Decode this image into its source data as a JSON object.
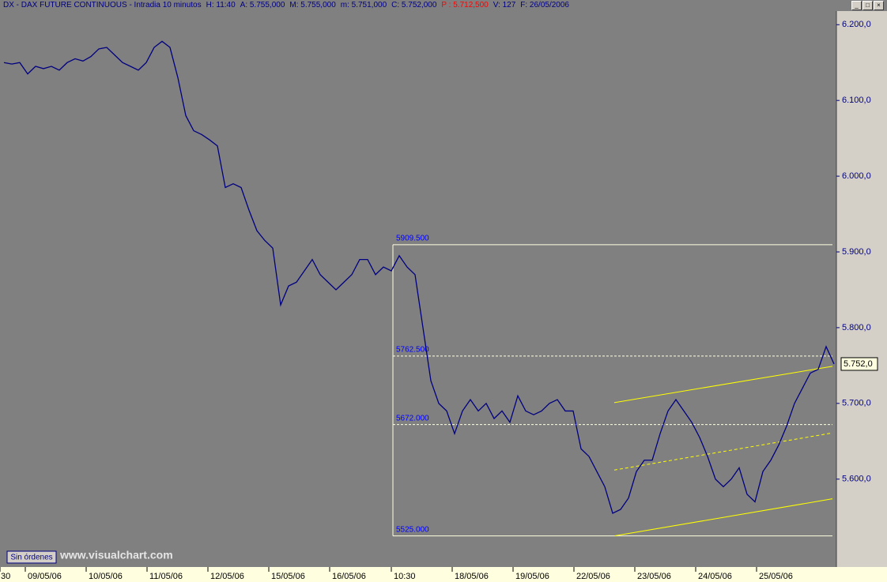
{
  "header": {
    "items": [
      {
        "text": "DX - DAX FUTURE CONTINUOUS - Intradia 10 minutos",
        "color": "#000080"
      },
      {
        "text": "H: 11:40",
        "color": "#000080"
      },
      {
        "text": "A: 5.755,000",
        "color": "#000080"
      },
      {
        "text": "M: 5.755,000",
        "color": "#000080"
      },
      {
        "text": "m: 5.751,000",
        "color": "#000080"
      },
      {
        "text": "C: 5.752,000",
        "color": "#000080"
      },
      {
        "text": "P : 5.712,500",
        "color": "#ff0000"
      },
      {
        "text": "V: 127",
        "color": "#000080"
      },
      {
        "text": "F: 26/05/2006",
        "color": "#000080"
      }
    ]
  },
  "chart_data": {
    "type": "line",
    "series": [
      {
        "name": "DX",
        "color": "#000080",
        "values": [
          6150,
          6148,
          6150,
          6135,
          6145,
          6142,
          6145,
          6140,
          6150,
          6155,
          6152,
          6158,
          6168,
          6170,
          6160,
          6150,
          6145,
          6140,
          6150,
          6170,
          6178,
          6170,
          6130,
          6080,
          6060,
          6055,
          6048,
          6040,
          5985,
          5990,
          5985,
          5955,
          5928,
          5915,
          5905,
          5830,
          5855,
          5860,
          5875,
          5890,
          5870,
          5860,
          5850,
          5860,
          5870,
          5890,
          5890,
          5870,
          5880,
          5875,
          5895,
          5880,
          5870,
          5800,
          5730,
          5700,
          5690,
          5660,
          5690,
          5705,
          5690,
          5700,
          5680,
          5690,
          5675,
          5710,
          5690,
          5685,
          5690,
          5700,
          5705,
          5690,
          5690,
          5640,
          5630,
          5610,
          5590,
          5555,
          5560,
          5575,
          5610,
          5625,
          5625,
          5660,
          5690,
          5705,
          5690,
          5675,
          5655,
          5630,
          5600,
          5590,
          5600,
          5615,
          5580,
          5570,
          5610,
          5625,
          5645,
          5670,
          5700,
          5720,
          5740,
          5745,
          5775,
          5752
        ]
      }
    ],
    "xlim": [
      -0.5,
      105.3
    ],
    "ylim": [
      5484,
      6218
    ],
    "yticks": [
      {
        "value": 5600,
        "label": "5.600,0"
      },
      {
        "value": 5700,
        "label": "5.700,0"
      },
      {
        "value": 5800,
        "label": "5.800,0"
      },
      {
        "value": 5900,
        "label": "5.900,0"
      },
      {
        "value": 6000,
        "label": "6.000,0"
      },
      {
        "value": 6100,
        "label": "6.100,0"
      },
      {
        "value": 6200,
        "label": "6.200,0"
      }
    ],
    "xticks": [
      {
        "value": -0.5,
        "label": "30"
      },
      {
        "value": 2.7,
        "label": "09/05/06"
      },
      {
        "value": 10.4,
        "label": "10/05/06"
      },
      {
        "value": 18.1,
        "label": "11/05/06"
      },
      {
        "value": 25.8,
        "label": "12/05/06"
      },
      {
        "value": 33.5,
        "label": "15/05/06"
      },
      {
        "value": 41.2,
        "label": "16/05/06"
      },
      {
        "value": 49,
        "label": "10:30"
      },
      {
        "value": 56.7,
        "label": "18/05/06"
      },
      {
        "value": 64.4,
        "label": "19/05/06"
      },
      {
        "value": 72.1,
        "label": "22/05/06"
      },
      {
        "value": 79.8,
        "label": "23/05/06"
      },
      {
        "value": 87.5,
        "label": "24/05/06"
      },
      {
        "value": 95.2,
        "label": "25/05/06"
      }
    ],
    "levels": [
      {
        "value": 5909.5,
        "label": "5909.500",
        "dashed": false
      },
      {
        "value": 5762.5,
        "label": "5762.500",
        "dashed": true
      },
      {
        "value": 5672.0,
        "label": "5672.000",
        "dashed": true
      },
      {
        "value": 5525.0,
        "label": "5525.000",
        "dashed": false
      }
    ],
    "levels_x": [
      49.2,
      104.8
    ],
    "trendlines": [
      {
        "x": [
          77.2,
          104.8
        ],
        "y": [
          5701,
          5749
        ],
        "dashed": false
      },
      {
        "x": [
          77.2,
          104.8
        ],
        "y": [
          5612,
          5661
        ],
        "dashed": true
      },
      {
        "x": [
          77.2,
          104.8
        ],
        "y": [
          5525,
          5574
        ],
        "dashed": false
      }
    ],
    "last_price": {
      "value": 5752,
      "label": "5.752,0"
    },
    "button": "Sin órdenes",
    "watermark": "www.visualchart.com"
  }
}
